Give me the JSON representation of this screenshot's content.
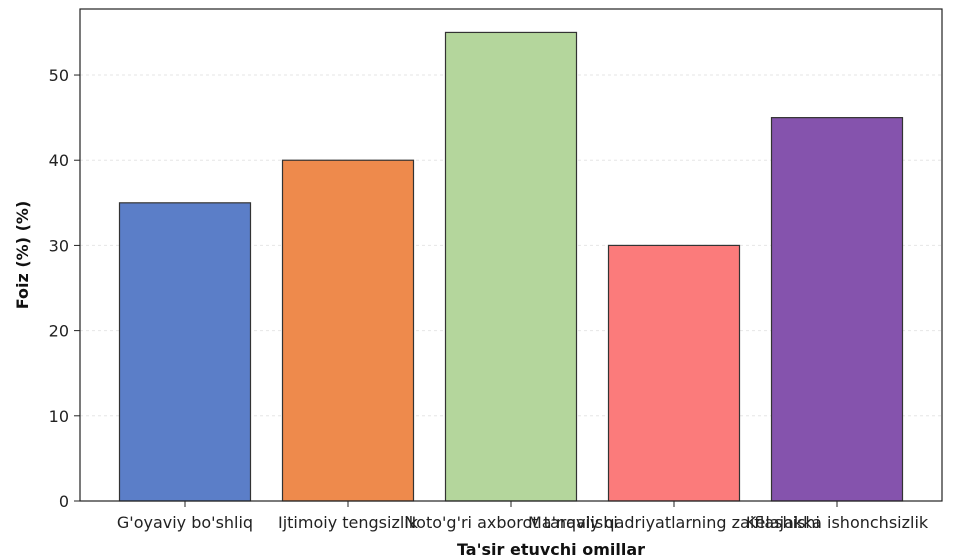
{
  "chart_data": {
    "type": "bar",
    "title": "",
    "xlabel": "Ta'sir etuvchi omillar",
    "ylabel": "Foiz (%) (%)",
    "ylim": [
      0,
      57.75
    ],
    "yticks": [
      0,
      10,
      20,
      30,
      40,
      50
    ],
    "grid": true,
    "categories": [
      "G'oyaviy bo'shliq",
      "Ijtimoiy tengsizlik",
      "Noto'g'ri axborot tarqalishi",
      "Ma'naviy qadriyatlarning zaiflashishi",
      "Kelajakka ishonchsizlik"
    ],
    "values": [
      35,
      40,
      55,
      30,
      45
    ],
    "colors": [
      "#5b7ec8",
      "#ee8a4c",
      "#b4d69c",
      "#fb7b7b",
      "#8553ad"
    ]
  }
}
